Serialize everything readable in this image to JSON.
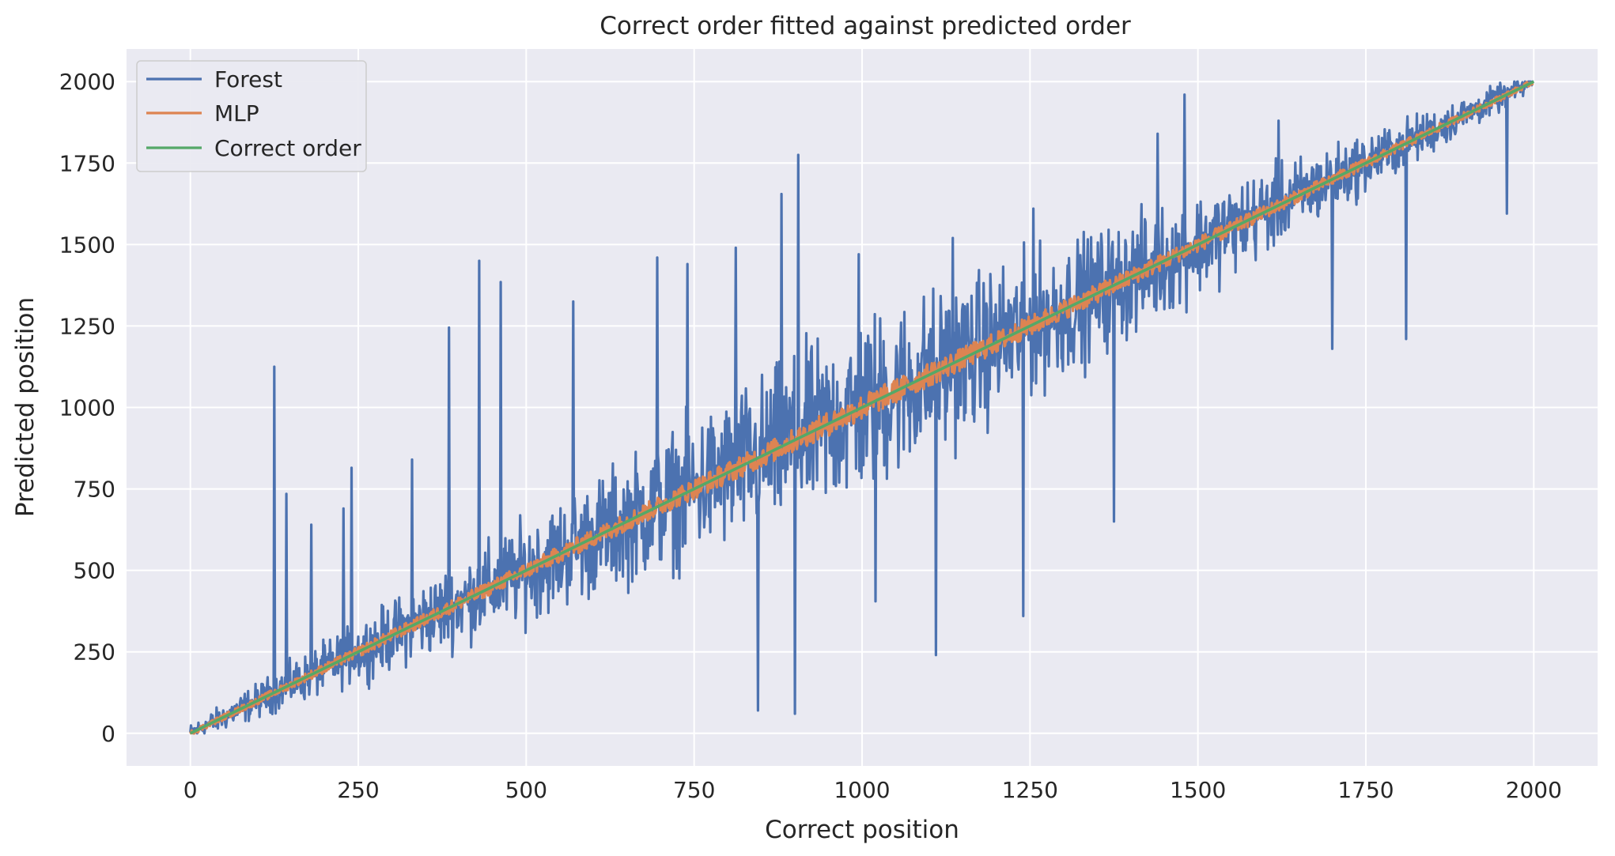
{
  "chart_data": {
    "type": "line",
    "title": "Correct order fitted against predicted order",
    "xlabel": "Correct position",
    "ylabel": "Predicted position",
    "xlim": [
      -95,
      2095
    ],
    "ylim": [
      -100,
      2100
    ],
    "xticks": [
      0,
      250,
      500,
      750,
      1000,
      1250,
      1500,
      1750,
      2000
    ],
    "yticks": [
      0,
      250,
      500,
      750,
      1000,
      1250,
      1500,
      1750,
      2000
    ],
    "grid": true,
    "legend_position": "top-left",
    "background_color": "#eaeaf2",
    "grid_color": "#ffffff",
    "x_count": 2000,
    "series": [
      {
        "name": "Forest",
        "color": "#4c72b0",
        "description": "noisy fit; spread approx ±30% of position, narrowing at both ends",
        "noise_amplitude": 0.38,
        "peaks": [
          {
            "x": 125,
            "y": 1125
          },
          {
            "x": 143,
            "y": 735
          },
          {
            "x": 180,
            "y": 640
          },
          {
            "x": 228,
            "y": 690
          },
          {
            "x": 240,
            "y": 815
          },
          {
            "x": 330,
            "y": 840
          },
          {
            "x": 385,
            "y": 1245
          },
          {
            "x": 430,
            "y": 1450
          },
          {
            "x": 462,
            "y": 1385
          },
          {
            "x": 570,
            "y": 1325
          },
          {
            "x": 695,
            "y": 1460
          },
          {
            "x": 740,
            "y": 1440
          },
          {
            "x": 812,
            "y": 1490
          },
          {
            "x": 880,
            "y": 1655
          },
          {
            "x": 905,
            "y": 1775
          },
          {
            "x": 995,
            "y": 1470
          },
          {
            "x": 1135,
            "y": 1520
          },
          {
            "x": 1255,
            "y": 1610
          },
          {
            "x": 1440,
            "y": 1840
          },
          {
            "x": 1480,
            "y": 1960
          },
          {
            "x": 1620,
            "y": 1880
          },
          {
            "x": 845,
            "y": 70
          },
          {
            "x": 900,
            "y": 60
          },
          {
            "x": 1020,
            "y": 405
          },
          {
            "x": 1110,
            "y": 240
          },
          {
            "x": 1240,
            "y": 360
          },
          {
            "x": 1375,
            "y": 650
          },
          {
            "x": 1700,
            "y": 1180
          },
          {
            "x": 1960,
            "y": 1595
          },
          {
            "x": 1810,
            "y": 1210
          }
        ]
      },
      {
        "name": "MLP",
        "color": "#dd8452",
        "description": "close fit around the diagonal",
        "noise_amplitude": 0.035
      },
      {
        "name": "Correct order",
        "color": "#55a868",
        "x": [
          0,
          2000
        ],
        "y": [
          0,
          2000
        ]
      }
    ]
  }
}
